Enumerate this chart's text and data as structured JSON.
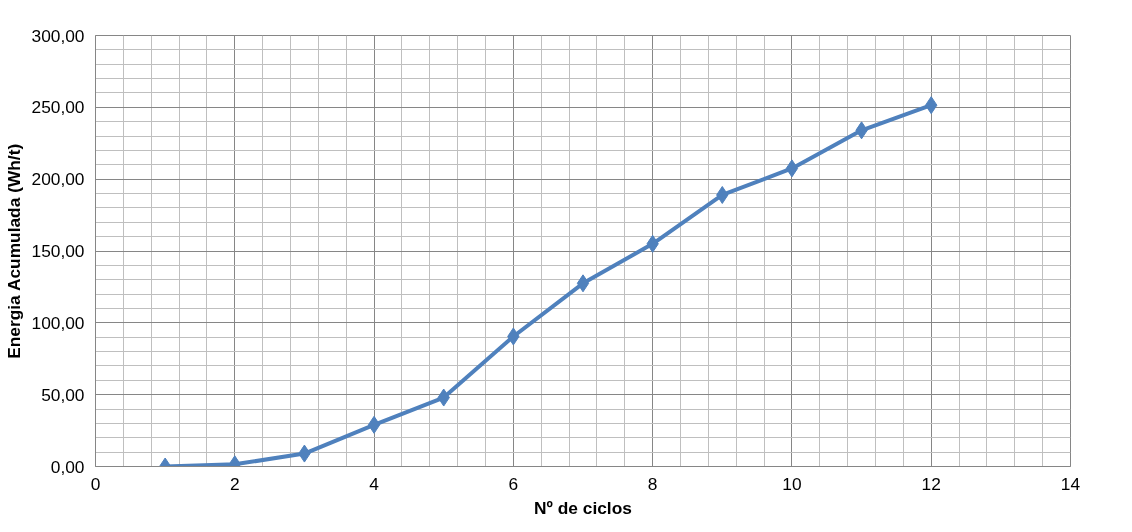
{
  "chart_data": {
    "type": "line",
    "xlabel": "Nº de ciclos",
    "ylabel": "Energia Acumulada (Wh/t)",
    "x": [
      1,
      2,
      3,
      4,
      5,
      6,
      7,
      8,
      9,
      10,
      11,
      12
    ],
    "series": [
      {
        "color": "#4f81bd",
        "values": [
          0,
          1.5,
          9,
          29,
          48,
          90.5,
          127.5,
          155,
          189,
          207.5,
          234,
          251.5
        ]
      }
    ],
    "xlim": [
      0,
      14
    ],
    "xticks": [
      0,
      2,
      4,
      6,
      8,
      10,
      12,
      14
    ],
    "ylim": [
      0,
      300
    ],
    "yticks": [
      {
        "value": 0,
        "label": "0,00"
      },
      {
        "value": 50,
        "label": "50,00"
      },
      {
        "value": 100,
        "label": "100,00"
      },
      {
        "value": 150,
        "label": "150,00"
      },
      {
        "value": 200,
        "label": "200,00"
      },
      {
        "value": 250,
        "label": "250,00"
      },
      {
        "value": 300,
        "label": "300,00"
      }
    ],
    "grid": true,
    "marker": "diamond",
    "line_style": "solid"
  }
}
